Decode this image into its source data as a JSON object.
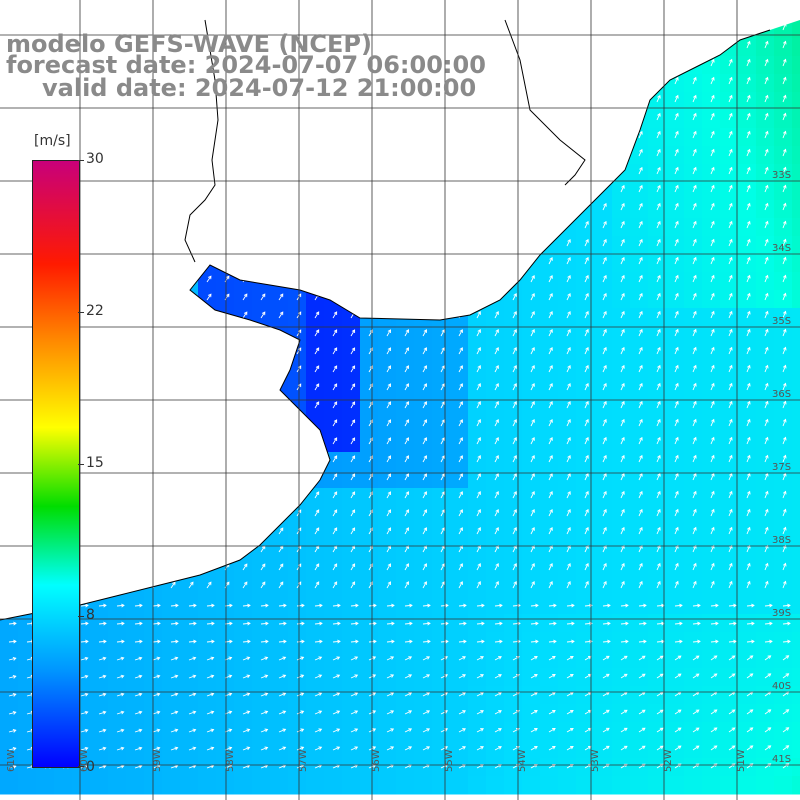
{
  "title": {
    "line1": "modelo GEFS-WAVE (NCEP)",
    "line2": "forecast date: 2024-07-07 06:00:00",
    "line3": "valid date: 2024-07-12 21:00:00"
  },
  "colorbar": {
    "unit": "[m/s]",
    "ticks": [
      "30",
      "22",
      "15",
      "8",
      "0"
    ],
    "tick_values": [
      30,
      22,
      15,
      8,
      0
    ],
    "range": [
      0,
      30
    ],
    "colors": [
      "#0000ff",
      "#0096ff",
      "#00ffff",
      "#00dd00",
      "#ffff00",
      "#ff8c00",
      "#ff1a00",
      "#c8007a"
    ]
  },
  "map": {
    "lon_labels": [
      "61W",
      "60W",
      "59W",
      "58W",
      "57W",
      "56W",
      "55W",
      "54W",
      "53W",
      "52W",
      "51W"
    ],
    "lat_labels": [
      "33S",
      "34S",
      "35S",
      "36S",
      "37S",
      "38S",
      "39S",
      "40S",
      "41S"
    ],
    "lat_labels_drawn": [
      "33S",
      "34S",
      "35S",
      "36S",
      "37S",
      "38S",
      "39S",
      "40S",
      "41S"
    ],
    "colors": {
      "land": "#ffffff",
      "coast": "#000000",
      "grid": "#333333",
      "arrow": "#ffffff"
    }
  }
}
